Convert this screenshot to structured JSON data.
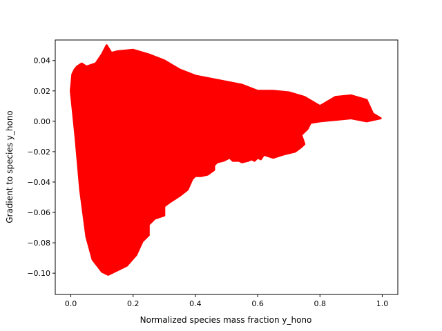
{
  "chart_data": {
    "type": "scatter",
    "title": "",
    "xlabel": "Normalized species mass fraction y_hono",
    "ylabel": "Gradient to species y_hono",
    "xlim": [
      -0.05,
      1.05
    ],
    "ylim": [
      -0.114,
      0.0535
    ],
    "xticks": [
      0.0,
      0.2,
      0.4,
      0.6,
      0.8,
      1.0
    ],
    "xtick_labels": [
      "0.0",
      "0.2",
      "0.4",
      "0.6",
      "0.8",
      "1.0"
    ],
    "yticks": [
      -0.1,
      -0.08,
      -0.06,
      -0.04,
      -0.02,
      0.0,
      0.02,
      0.04
    ],
    "ytick_labels": [
      "−0.10",
      "−0.08",
      "−0.06",
      "−0.04",
      "−0.02",
      "0.00",
      "0.02",
      "0.04"
    ],
    "grid": false,
    "series": [
      {
        "color": "#ff0000",
        "marker": "point",
        "region_outline": [
          [
            0.0,
            0.02
          ],
          [
            0.005,
            0.031
          ],
          [
            0.012,
            0.034
          ],
          [
            0.02,
            0.036
          ],
          [
            0.035,
            0.038
          ],
          [
            0.05,
            0.036
          ],
          [
            0.08,
            0.038
          ],
          [
            0.1,
            0.044
          ],
          [
            0.115,
            0.05
          ],
          [
            0.13,
            0.045
          ],
          [
            0.15,
            0.046
          ],
          [
            0.2,
            0.047
          ],
          [
            0.25,
            0.044
          ],
          [
            0.3,
            0.04
          ],
          [
            0.35,
            0.034
          ],
          [
            0.4,
            0.03
          ],
          [
            0.45,
            0.028
          ],
          [
            0.5,
            0.026
          ],
          [
            0.55,
            0.024
          ],
          [
            0.6,
            0.02
          ],
          [
            0.65,
            0.02
          ],
          [
            0.7,
            0.019
          ],
          [
            0.75,
            0.016
          ],
          [
            0.8,
            0.01
          ],
          [
            0.85,
            0.016
          ],
          [
            0.9,
            0.017
          ],
          [
            0.95,
            0.014
          ],
          [
            0.97,
            0.005
          ],
          [
            0.995,
            0.002
          ],
          [
            0.95,
            0.0
          ],
          [
            0.9,
            0.002
          ],
          [
            0.85,
            0.001
          ],
          [
            0.8,
            0.0
          ],
          [
            0.77,
            -0.001
          ],
          [
            0.76,
            -0.005
          ],
          [
            0.74,
            -0.009
          ],
          [
            0.75,
            -0.015
          ],
          [
            0.74,
            -0.017
          ],
          [
            0.72,
            -0.02
          ],
          [
            0.7,
            -0.021
          ],
          [
            0.68,
            -0.022
          ],
          [
            0.65,
            -0.024
          ],
          [
            0.62,
            -0.022
          ],
          [
            0.61,
            -0.025
          ],
          [
            0.6,
            -0.024
          ],
          [
            0.59,
            -0.026
          ],
          [
            0.58,
            -0.025
          ],
          [
            0.57,
            -0.026
          ],
          [
            0.55,
            -0.027
          ],
          [
            0.54,
            -0.026
          ],
          [
            0.52,
            -0.026
          ],
          [
            0.51,
            -0.024
          ],
          [
            0.5,
            -0.025
          ],
          [
            0.49,
            -0.026
          ],
          [
            0.47,
            -0.027
          ],
          [
            0.46,
            -0.029
          ],
          [
            0.46,
            -0.032
          ],
          [
            0.44,
            -0.035
          ],
          [
            0.42,
            -0.036
          ],
          [
            0.4,
            -0.036
          ],
          [
            0.39,
            -0.038
          ],
          [
            0.375,
            -0.045
          ],
          [
            0.35,
            -0.049
          ],
          [
            0.32,
            -0.053
          ],
          [
            0.3,
            -0.056
          ],
          [
            0.3,
            -0.062
          ],
          [
            0.27,
            -0.064
          ],
          [
            0.25,
            -0.068
          ],
          [
            0.25,
            -0.075
          ],
          [
            0.23,
            -0.079
          ],
          [
            0.21,
            -0.088
          ],
          [
            0.18,
            -0.095
          ],
          [
            0.15,
            -0.098
          ],
          [
            0.12,
            -0.101
          ],
          [
            0.1,
            -0.099
          ],
          [
            0.07,
            -0.091
          ],
          [
            0.05,
            -0.076
          ],
          [
            0.03,
            -0.045
          ],
          [
            0.015,
            -0.01
          ],
          [
            0.005,
            0.01
          ],
          [
            0.0,
            0.02
          ]
        ]
      }
    ]
  }
}
